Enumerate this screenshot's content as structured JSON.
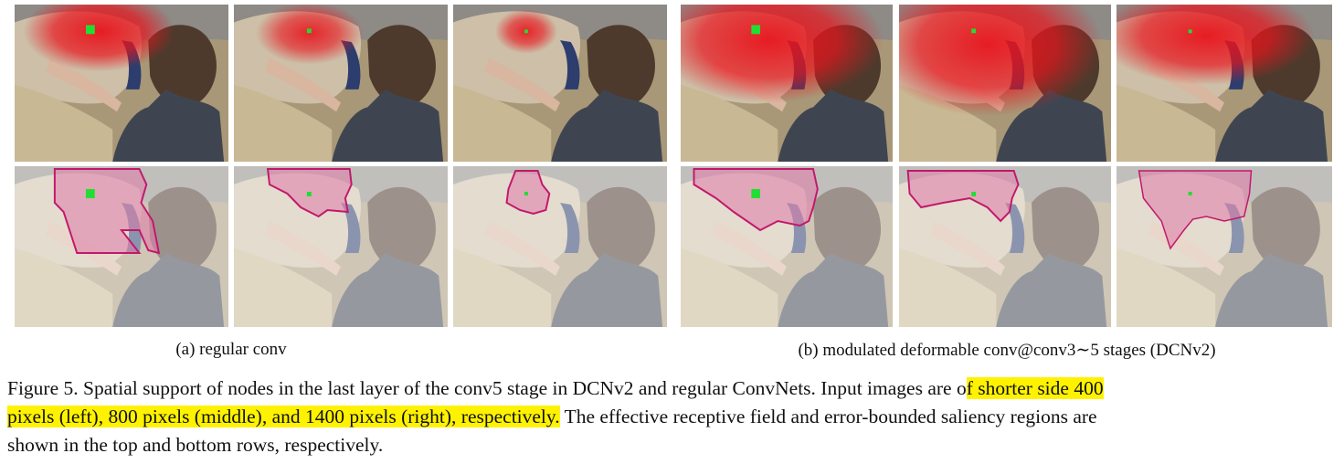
{
  "figure": {
    "subcaption_a": "(a)  regular conv",
    "subcaption_b": "(b)  modulated deformable conv@conv3∼5 stages (DCNv2)",
    "caption": {
      "line1_pre": "Figure 5. Spatial support of nodes in the last layer of the conv5 stage in DCNv2 and regular ConvNets. Input images are o",
      "line1_hl": "f shorter side 400",
      "line2_hl": "pixels (left), 800 pixels (middle), and 1400 pixels (right), respectively.",
      "line2_post": " The effective receptive field and error-bounded saliency regions are",
      "line3": "shown in the top and bottom rows, respectively."
    }
  },
  "colors": {
    "heatmap": "#e8141c",
    "saliency_fill": "#e07aa8",
    "saliency_edge": "#c2186b",
    "node_marker": "#22dd33"
  }
}
